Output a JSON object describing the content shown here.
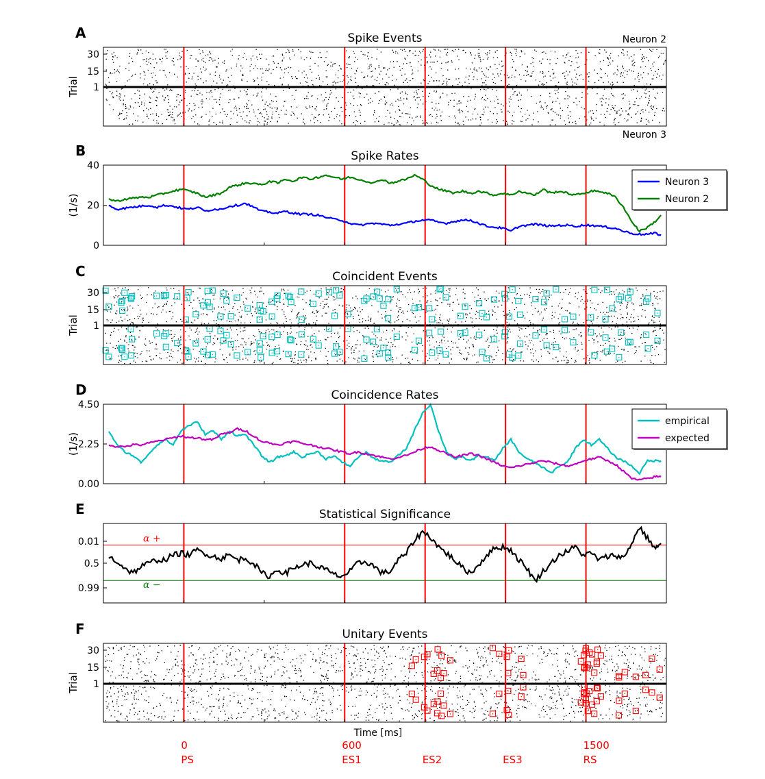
{
  "chart_data": [
    {
      "id": "A",
      "type": "raster",
      "title": "Spike Events",
      "ylabel": "Trial",
      "yticks": [
        "30",
        "15",
        "1"
      ],
      "neuron_top": "Neuron 2",
      "neuron_bottom": "Neuron 3",
      "xlim": [
        -300,
        1800
      ],
      "events_x": [
        0,
        600,
        900,
        1200,
        1500
      ]
    },
    {
      "id": "B",
      "type": "line",
      "title": "Spike Rates",
      "ylabel": "(1/s)",
      "yticks": [
        "40",
        "20",
        "0"
      ],
      "ylim": [
        0,
        40
      ],
      "xlim": [
        -300,
        1800
      ],
      "grid": false,
      "legend_position": "top-right",
      "x": [
        -280,
        -250,
        -220,
        -190,
        -160,
        -130,
        -100,
        -70,
        -40,
        -10,
        20,
        50,
        80,
        110,
        140,
        170,
        200,
        230,
        260,
        290,
        320,
        350,
        380,
        410,
        440,
        470,
        500,
        530,
        560,
        590,
        620,
        650,
        680,
        710,
        740,
        770,
        800,
        830,
        860,
        890,
        920,
        950,
        980,
        1010,
        1040,
        1070,
        1100,
        1130,
        1160,
        1190,
        1220,
        1250,
        1280,
        1310,
        1340,
        1370,
        1400,
        1430,
        1460,
        1490,
        1520,
        1550,
        1580,
        1610,
        1640,
        1670,
        1700,
        1730,
        1760,
        1780
      ],
      "series": [
        {
          "name": "Neuron 3",
          "color": "#0000ff",
          "values": [
            20,
            18,
            18.5,
            19,
            19.5,
            20,
            19,
            20,
            19.5,
            18.5,
            18,
            19,
            17,
            18,
            18,
            19.5,
            20,
            21,
            19,
            17,
            16.5,
            16,
            17,
            16,
            15.5,
            15.5,
            15,
            14,
            13,
            12.5,
            11,
            10,
            10.5,
            11,
            10.5,
            10,
            10.5,
            11,
            12,
            12.5,
            12.5,
            11.5,
            11,
            12,
            12.5,
            12.5,
            11,
            9.5,
            9,
            8.5,
            7,
            9.5,
            10,
            10.5,
            10,
            9.5,
            10,
            10,
            9.5,
            10,
            10,
            9.5,
            9,
            8.5,
            7,
            6,
            5.5,
            5.5,
            6,
            5
          ]
        },
        {
          "name": "Neuron 2",
          "color": "#008000",
          "values": [
            23,
            22,
            23,
            23.5,
            24,
            24,
            25,
            26,
            27,
            28,
            27,
            26,
            24,
            25,
            26,
            29,
            30,
            31,
            31,
            30,
            32,
            31,
            33,
            32,
            34,
            33,
            34,
            35,
            34,
            33,
            34,
            33,
            32,
            31,
            33,
            31,
            32,
            33,
            35,
            33,
            30,
            28,
            27,
            26,
            27,
            26,
            27,
            26,
            25,
            26,
            25,
            27,
            26,
            25,
            28,
            26,
            27,
            26,
            25,
            26,
            27,
            27,
            26,
            24,
            19,
            12,
            7,
            9,
            12,
            15
          ]
        }
      ]
    },
    {
      "id": "C",
      "type": "raster",
      "title": "Coincident Events",
      "ylabel": "Trial",
      "yticks": [
        "30",
        "15",
        "1"
      ],
      "xlim": [
        -300,
        1800
      ],
      "events_x": [
        0,
        600,
        900,
        1200,
        1500
      ],
      "marker_color": "#00bfbf"
    },
    {
      "id": "D",
      "type": "line",
      "title": "Coincidence Rates",
      "ylabel": "(1/s)",
      "yticks": [
        "4.50",
        "2.25",
        "0.00"
      ],
      "ylim": [
        0,
        4.5
      ],
      "xlim": [
        -300,
        1800
      ],
      "legend_position": "top-right",
      "x": [
        -280,
        -250,
        -220,
        -190,
        -160,
        -130,
        -100,
        -70,
        -40,
        -10,
        20,
        50,
        80,
        110,
        140,
        170,
        200,
        230,
        260,
        290,
        320,
        350,
        380,
        410,
        440,
        470,
        500,
        530,
        560,
        590,
        620,
        650,
        680,
        710,
        740,
        770,
        800,
        830,
        860,
        890,
        920,
        950,
        980,
        1010,
        1040,
        1070,
        1100,
        1130,
        1160,
        1190,
        1220,
        1250,
        1280,
        1310,
        1340,
        1370,
        1400,
        1430,
        1460,
        1490,
        1520,
        1550,
        1580,
        1610,
        1640,
        1670,
        1700,
        1730,
        1760,
        1780
      ],
      "series": [
        {
          "name": "empirical",
          "color": "#00bfbf",
          "values": [
            3.0,
            2.2,
            1.8,
            1.6,
            1.2,
            1.7,
            2.2,
            2.5,
            2.2,
            3.0,
            3.3,
            3.5,
            2.8,
            3.0,
            2.5,
            3.0,
            2.7,
            2.8,
            2.2,
            1.6,
            1.2,
            1.5,
            1.6,
            1.8,
            1.5,
            1.7,
            1.8,
            1.4,
            1.6,
            1.2,
            1.0,
            1.5,
            1.8,
            1.4,
            1.3,
            1.2,
            1.6,
            2.0,
            3.0,
            4.0,
            4.5,
            3.0,
            1.8,
            1.4,
            1.5,
            1.3,
            1.6,
            1.5,
            1.3,
            2.0,
            2.5,
            1.8,
            1.4,
            1.2,
            0.9,
            0.6,
            1.0,
            1.2,
            2.0,
            2.5,
            2.2,
            2.5,
            2.0,
            1.5,
            1.3,
            1.0,
            0.6,
            1.3,
            1.3,
            1.3
          ]
        },
        {
          "name": "expected",
          "color": "#bf00bf",
          "values": [
            2.2,
            2.1,
            2.1,
            2.2,
            2.2,
            2.3,
            2.4,
            2.5,
            2.6,
            2.7,
            2.6,
            2.6,
            2.5,
            2.5,
            2.8,
            2.9,
            3.1,
            3.0,
            2.7,
            2.4,
            2.3,
            2.2,
            2.3,
            2.4,
            2.3,
            2.2,
            2.1,
            2.0,
            1.9,
            1.8,
            1.7,
            1.8,
            1.7,
            1.6,
            1.5,
            1.4,
            1.5,
            1.6,
            1.8,
            2.0,
            2.1,
            1.9,
            1.7,
            1.5,
            1.6,
            1.7,
            1.6,
            1.4,
            1.2,
            1.0,
            0.9,
            1.0,
            1.1,
            1.2,
            1.3,
            1.2,
            1.1,
            1.0,
            1.1,
            1.3,
            1.4,
            1.5,
            1.3,
            1.1,
            0.7,
            0.3,
            0.2,
            0.3,
            0.4,
            0.4
          ]
        }
      ]
    },
    {
      "id": "E",
      "type": "line",
      "title": "Statistical Significance",
      "yticks": [
        "0.01",
        "0.5",
        "0.99"
      ],
      "xlim": [
        -300,
        1800
      ],
      "threshold_labels": [
        "α +",
        "α −"
      ],
      "threshold_colors": [
        "#ff0000",
        "#008000"
      ],
      "y_scale": "log-odds of significance",
      "x": [
        -280,
        -250,
        -220,
        -190,
        -160,
        -130,
        -100,
        -70,
        -40,
        -10,
        20,
        50,
        80,
        110,
        140,
        170,
        200,
        230,
        260,
        290,
        320,
        350,
        380,
        410,
        440,
        470,
        500,
        530,
        560,
        590,
        620,
        650,
        680,
        710,
        740,
        770,
        800,
        830,
        860,
        890,
        920,
        950,
        980,
        1010,
        1040,
        1070,
        1100,
        1130,
        1160,
        1190,
        1220,
        1250,
        1280,
        1310,
        1340,
        1370,
        1400,
        1430,
        1460,
        1490,
        1520,
        1550,
        1580,
        1610,
        1640,
        1670,
        1700,
        1730,
        1760,
        1780
      ],
      "series": [
        {
          "name": "",
          "color": "#000000",
          "values": [
            0.4,
            0.1,
            -0.3,
            -0.6,
            -0.2,
            0.0,
            0.2,
            0.2,
            0.5,
            0.6,
            0.5,
            0.8,
            0.6,
            0.4,
            0.3,
            0.5,
            0.2,
            0.3,
            0.0,
            -0.6,
            -0.8,
            -0.4,
            -0.6,
            -0.3,
            -0.1,
            0.0,
            -0.2,
            -0.4,
            -0.7,
            -0.8,
            -0.5,
            0.0,
            0.1,
            -0.2,
            -0.6,
            -0.5,
            0.2,
            0.6,
            1.4,
            1.9,
            1.6,
            1.0,
            0.6,
            0.2,
            -0.3,
            -0.6,
            -0.1,
            0.5,
            0.9,
            1.0,
            0.8,
            0.2,
            -0.3,
            -1.1,
            -0.5,
            0.0,
            0.5,
            0.7,
            1.0,
            0.5,
            0.6,
            0.2,
            0.4,
            0.5,
            0.3,
            1.2,
            2.2,
            1.5,
            0.9,
            1.2
          ]
        }
      ]
    },
    {
      "id": "F",
      "type": "raster",
      "title": "Unitary Events",
      "ylabel": "Trial",
      "yticks": [
        "30",
        "15",
        "1"
      ],
      "xlim": [
        -300,
        1800
      ],
      "events_x": [
        0,
        600,
        900,
        1200,
        1500
      ],
      "xlabel": "Time [ms]",
      "marker_color": "#ff0000"
    }
  ],
  "letters": [
    "A",
    "B",
    "C",
    "D",
    "E",
    "F"
  ],
  "event_labels": [
    {
      "time": "0",
      "name": "PS"
    },
    {
      "time": "600",
      "name": "ES1"
    },
    {
      "time": "",
      "name": "ES2"
    },
    {
      "time": "",
      "name": "ES3"
    },
    {
      "time": "1500",
      "name": "RS"
    }
  ],
  "colors": {
    "event_line": "#ff0000",
    "trial_separator": "#000000"
  }
}
